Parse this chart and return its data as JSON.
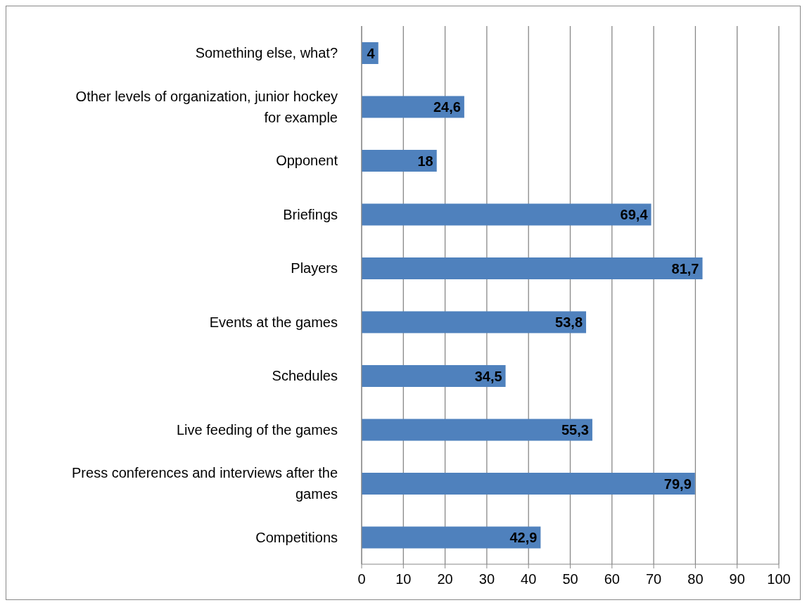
{
  "chart_data": {
    "type": "bar",
    "orientation": "horizontal",
    "categories": [
      "Something else, what?",
      "Other levels of organization, junior hockey for example",
      "Opponent",
      "Briefings",
      "Players",
      "Events at the games",
      "Schedules",
      "Live feeding of the games",
      "Press conferences and interviews after the games",
      "Competitions"
    ],
    "values": [
      4,
      24.6,
      18,
      69.4,
      81.7,
      53.8,
      34.5,
      55.3,
      79.9,
      42.9
    ],
    "value_labels": [
      "4",
      "24,6",
      "18",
      "69,4",
      "81,7",
      "53,8",
      "34,5",
      "55,3",
      "79,9",
      "42,9"
    ],
    "color": "#4f81bd",
    "xlim": [
      0,
      100
    ],
    "xticks": [
      0,
      10,
      20,
      30,
      40,
      50,
      60,
      70,
      80,
      90,
      100
    ],
    "grid": "x",
    "legend": false
  }
}
